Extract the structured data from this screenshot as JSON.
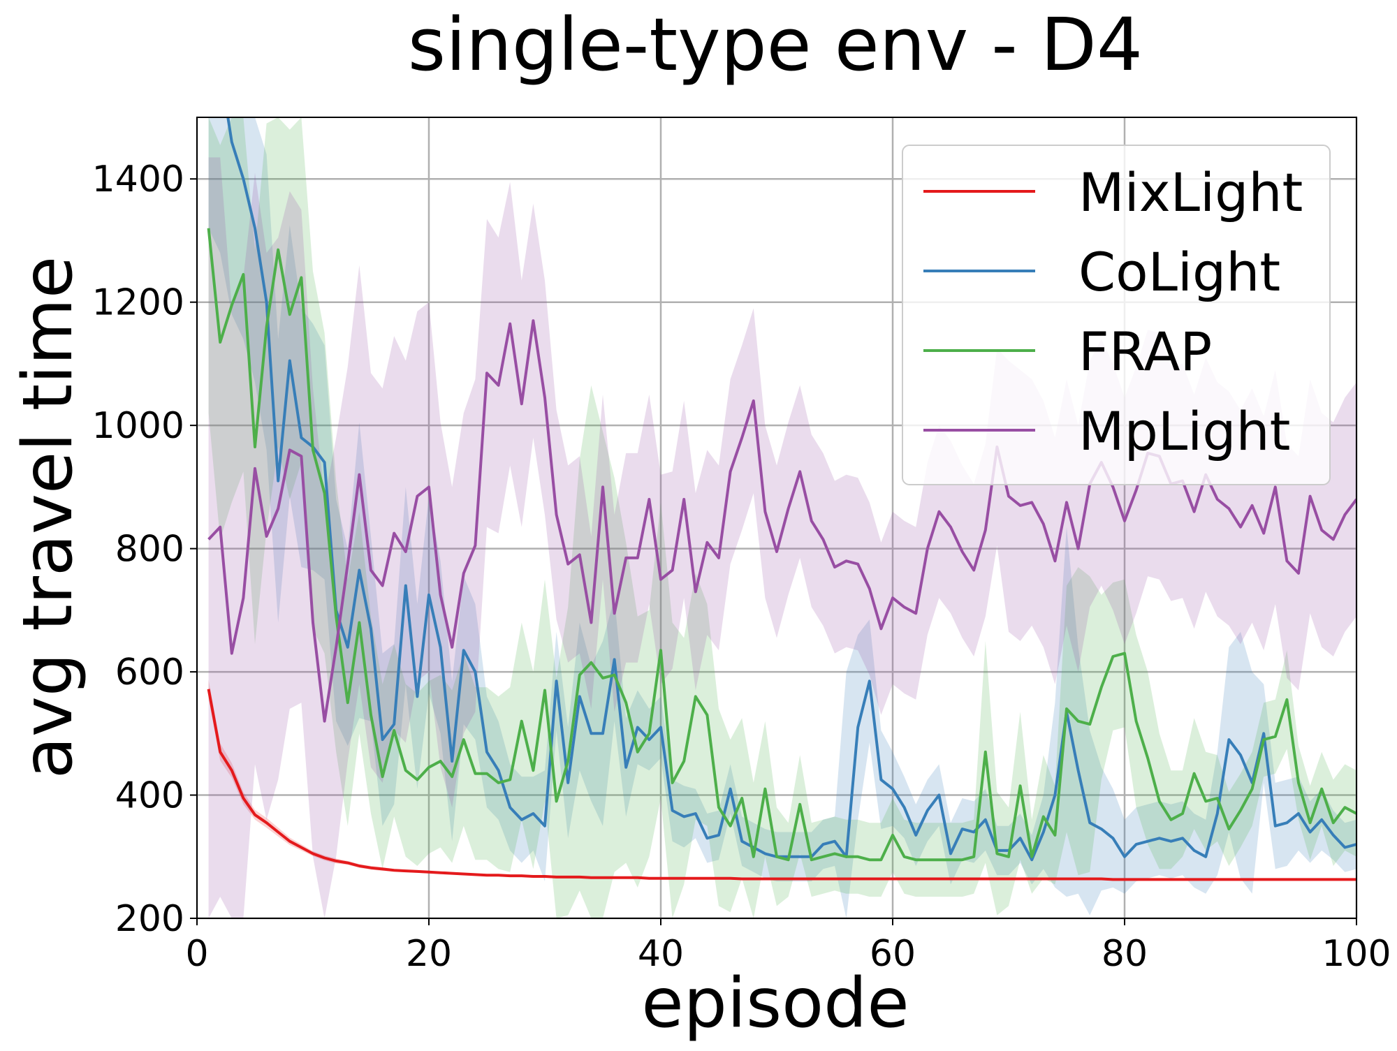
{
  "chart_data": {
    "type": "line",
    "title": "single-type env - D4",
    "xlabel": "episode",
    "ylabel": "avg travel time",
    "xlim": [
      0,
      100
    ],
    "ylim": [
      200,
      1500
    ],
    "xticks": [
      0,
      20,
      40,
      60,
      80,
      100
    ],
    "xtick_labels": [
      "0",
      "20",
      "40",
      "60",
      "80",
      "100"
    ],
    "yticks": [
      200,
      400,
      600,
      800,
      1000,
      1200,
      1400
    ],
    "ytick_labels": [
      "200",
      "400",
      "600",
      "800",
      "1000",
      "1200",
      "1400"
    ],
    "grid": true,
    "legend_position": "top-right",
    "legend_labels": [
      "MixLight",
      "CoLight",
      "FRAP",
      "MpLight"
    ],
    "x": [
      1,
      2,
      3,
      4,
      5,
      6,
      7,
      8,
      9,
      10,
      11,
      12,
      13,
      14,
      15,
      16,
      17,
      18,
      19,
      20,
      21,
      22,
      23,
      24,
      25,
      26,
      27,
      28,
      29,
      30,
      31,
      32,
      33,
      34,
      35,
      36,
      37,
      38,
      39,
      40,
      41,
      42,
      43,
      44,
      45,
      46,
      47,
      48,
      49,
      50,
      51,
      52,
      53,
      54,
      55,
      56,
      57,
      58,
      59,
      60,
      61,
      62,
      63,
      64,
      65,
      66,
      67,
      68,
      69,
      70,
      71,
      72,
      73,
      74,
      75,
      76,
      77,
      78,
      79,
      80,
      81,
      82,
      83,
      84,
      85,
      86,
      87,
      88,
      89,
      90,
      91,
      92,
      93,
      94,
      95,
      96,
      97,
      98,
      99,
      100
    ],
    "series": [
      {
        "name": "MixLight",
        "color": "#e41a1c",
        "band_width": [
          15,
          14,
          12,
          10,
          8,
          8,
          7,
          6,
          5,
          4,
          4,
          4,
          3,
          3,
          3,
          3,
          2,
          2,
          2,
          2,
          2,
          2,
          2,
          2,
          2,
          2,
          2,
          2,
          2,
          2,
          2,
          2,
          2,
          2,
          2,
          2,
          2,
          2,
          2,
          2,
          2,
          2,
          2,
          2,
          2,
          2,
          2,
          2,
          2,
          2,
          2,
          2,
          2,
          2,
          2,
          2,
          2,
          2,
          2,
          2,
          2,
          2,
          2,
          2,
          2,
          2,
          2,
          2,
          2,
          2,
          2,
          2,
          2,
          2,
          2,
          2,
          2,
          2,
          2,
          2,
          2,
          2,
          2,
          2,
          2,
          2,
          2,
          2,
          2,
          2,
          2,
          2,
          2,
          2,
          2,
          2,
          2,
          2,
          2,
          2
        ],
        "values": [
          572,
          470,
          440,
          395,
          368,
          355,
          340,
          325,
          315,
          305,
          298,
          293,
          290,
          285,
          282,
          280,
          278,
          277,
          276,
          275,
          274,
          273,
          272,
          271,
          270,
          270,
          269,
          269,
          268,
          268,
          267,
          267,
          267,
          266,
          266,
          266,
          266,
          266,
          265,
          265,
          265,
          265,
          265,
          265,
          265,
          265,
          264,
          264,
          264,
          264,
          264,
          264,
          264,
          264,
          264,
          264,
          264,
          264,
          264,
          264,
          264,
          264,
          264,
          264,
          264,
          264,
          264,
          264,
          264,
          264,
          264,
          264,
          264,
          264,
          264,
          264,
          264,
          264,
          263,
          263,
          263,
          263,
          263,
          263,
          263,
          263,
          263,
          263,
          263,
          263,
          263,
          263,
          263,
          263,
          263,
          263,
          263,
          263,
          263,
          263
        ]
      },
      {
        "name": "CoLight",
        "color": "#377eb8",
        "band_width": [
          300,
          300,
          280,
          260,
          250,
          240,
          230,
          220,
          210,
          200,
          190,
          180,
          160,
          240,
          150,
          140,
          130,
          160,
          150,
          160,
          140,
          130,
          120,
          110,
          90,
          80,
          70,
          70,
          60,
          90,
          80,
          90,
          120,
          110,
          150,
          100,
          80,
          60,
          50,
          50,
          50,
          50,
          40,
          40,
          40,
          40,
          40,
          40,
          40,
          40,
          40,
          40,
          40,
          40,
          40,
          300,
          150,
          100,
          80,
          60,
          50,
          50,
          50,
          50,
          50,
          50,
          50,
          50,
          40,
          40,
          40,
          40,
          60,
          150,
          300,
          200,
          150,
          100,
          80,
          60,
          60,
          60,
          60,
          60,
          60,
          60,
          60,
          100,
          150,
          200,
          180,
          80,
          70,
          70,
          60,
          50,
          50,
          40,
          40,
          40
        ],
        "values": [
          1620,
          1580,
          1460,
          1400,
          1320,
          1200,
          910,
          1105,
          980,
          965,
          940,
          700,
          640,
          765,
          670,
          490,
          515,
          740,
          560,
          725,
          640,
          455,
          635,
          600,
          470,
          440,
          380,
          360,
          370,
          350,
          585,
          420,
          560,
          500,
          500,
          620,
          445,
          510,
          490,
          510,
          375,
          365,
          370,
          330,
          335,
          410,
          325,
          315,
          305,
          300,
          300,
          300,
          300,
          320,
          325,
          300,
          510,
          585,
          425,
          410,
          380,
          335,
          375,
          400,
          305,
          345,
          340,
          360,
          310,
          310,
          330,
          295,
          340,
          400,
          535,
          440,
          355,
          345,
          330,
          300,
          320,
          325,
          330,
          325,
          330,
          310,
          300,
          370,
          490,
          465,
          420,
          500,
          350,
          355,
          370,
          340,
          360,
          335,
          315,
          320
        ]
      },
      {
        "name": "FRAP",
        "color": "#4daf4a",
        "band_width": [
          300,
          320,
          320,
          320,
          320,
          330,
          320,
          300,
          300,
          290,
          260,
          220,
          200,
          180,
          160,
          150,
          140,
          140,
          140,
          140,
          140,
          140,
          140,
          140,
          140,
          140,
          150,
          160,
          160,
          180,
          200,
          250,
          350,
          450,
          400,
          320,
          260,
          220,
          200,
          240,
          260,
          200,
          200,
          180,
          160,
          140,
          130,
          120,
          110,
          80,
          60,
          80,
          60,
          60,
          60,
          60,
          60,
          60,
          60,
          60,
          60,
          60,
          60,
          60,
          60,
          60,
          60,
          180,
          100,
          80,
          120,
          60,
          100,
          80,
          200,
          250,
          240,
          150,
          120,
          120,
          140,
          140,
          110,
          80,
          70,
          90,
          80,
          70,
          60,
          60,
          60,
          60,
          60,
          80,
          60,
          60,
          60,
          70,
          70,
          70
        ],
        "values": [
          1320,
          1135,
          1195,
          1245,
          965,
          1160,
          1285,
          1180,
          1240,
          960,
          890,
          690,
          550,
          680,
          530,
          430,
          505,
          440,
          425,
          445,
          455,
          430,
          490,
          435,
          435,
          420,
          425,
          520,
          440,
          570,
          390,
          455,
          595,
          615,
          590,
          595,
          550,
          470,
          500,
          635,
          420,
          455,
          560,
          530,
          380,
          350,
          395,
          300,
          410,
          300,
          295,
          385,
          295,
          300,
          305,
          300,
          300,
          295,
          295,
          335,
          300,
          295,
          295,
          295,
          295,
          295,
          300,
          470,
          305,
          300,
          415,
          300,
          365,
          335,
          540,
          520,
          515,
          575,
          625,
          630,
          520,
          460,
          390,
          360,
          370,
          435,
          390,
          395,
          345,
          375,
          410,
          490,
          495,
          555,
          420,
          355,
          410,
          355,
          380,
          370
        ]
      },
      {
        "name": "MpLight",
        "color": "#984ea3",
        "band_width": [
          620,
          600,
          560,
          520,
          480,
          460,
          440,
          420,
          400,
          380,
          360,
          340,
          320,
          340,
          320,
          320,
          320,
          310,
          300,
          300,
          280,
          260,
          260,
          270,
          250,
          240,
          230,
          200,
          190,
          190,
          170,
          160,
          160,
          140,
          150,
          160,
          170,
          170,
          170,
          170,
          160,
          160,
          160,
          150,
          150,
          150,
          150,
          150,
          140,
          140,
          140,
          140,
          140,
          140,
          140,
          140,
          140,
          140,
          140,
          140,
          140,
          140,
          140,
          140,
          140,
          140,
          140,
          140,
          160,
          220,
          220,
          200,
          200,
          200,
          200,
          200,
          200,
          200,
          200,
          200,
          200,
          200,
          200,
          190,
          190,
          190,
          190,
          190,
          190,
          190,
          190,
          190,
          190,
          190,
          190,
          190,
          190,
          190,
          190,
          190
        ],
        "values": [
          815,
          835,
          630,
          720,
          930,
          820,
          865,
          960,
          950,
          680,
          520,
          640,
          775,
          920,
          765,
          740,
          825,
          795,
          885,
          900,
          725,
          640,
          760,
          805,
          1085,
          1065,
          1165,
          1035,
          1170,
          1045,
          855,
          775,
          790,
          680,
          900,
          695,
          785,
          785,
          880,
          750,
          765,
          880,
          730,
          810,
          785,
          925,
          980,
          1040,
          860,
          795,
          865,
          925,
          845,
          815,
          770,
          780,
          775,
          735,
          670,
          720,
          705,
          695,
          800,
          860,
          835,
          795,
          765,
          830,
          965,
          885,
          870,
          875,
          840,
          780,
          875,
          800,
          905,
          940,
          900,
          845,
          895,
          955,
          950,
          905,
          910,
          860,
          920,
          880,
          865,
          835,
          870,
          825,
          900,
          780,
          760,
          885,
          830,
          815,
          855,
          880
        ]
      }
    ]
  }
}
